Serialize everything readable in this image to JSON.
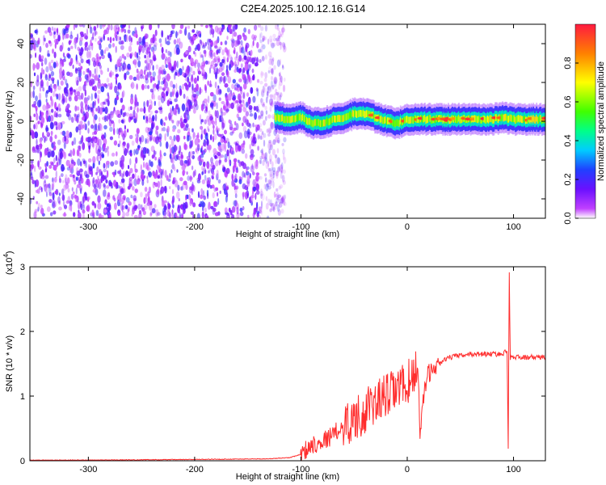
{
  "title": "C2E4.2025.100.12.16.G14",
  "chart_data": [
    {
      "type": "heatmap",
      "xlabel": "Height of straight line (km)",
      "ylabel": "Frequency (Hz)",
      "xlim": [
        -355,
        130
      ],
      "ylim": [
        -50,
        50
      ],
      "x_ticks": [
        -300,
        -200,
        -100,
        0,
        100
      ],
      "y_ticks": [
        -40,
        -20,
        0,
        20,
        40
      ],
      "colorbar": {
        "label": "Normalized spectral amplitude",
        "range": [
          0,
          1
        ],
        "ticks": [
          0.0,
          0.2,
          0.4,
          0.6,
          0.8
        ]
      },
      "regions": [
        {
          "x_range": [
            -355,
            -125
          ],
          "pattern": "noise",
          "amplitude_range": [
            0.0,
            0.2
          ],
          "frequency_range": [
            -50,
            50
          ]
        },
        {
          "x_range": [
            -125,
            130
          ],
          "pattern": "signal_band",
          "center_frequency": 0,
          "band_halfwidth": 6
        }
      ],
      "ridge": {
        "x": [
          -125,
          -110,
          -100,
          -90,
          -80,
          -70,
          -60,
          -50,
          -40,
          -30,
          -20,
          -10,
          0,
          10,
          20,
          40,
          60,
          80,
          90,
          100,
          130
        ],
        "frequency": [
          2,
          1,
          2,
          -1,
          -1,
          1,
          2,
          4,
          4,
          2,
          0,
          -1,
          1,
          1,
          1,
          1,
          1,
          1,
          2,
          1,
          1
        ]
      }
    },
    {
      "type": "line",
      "xlabel": "Height of straight line (km)",
      "ylabel": "SNR (10 * v/v)",
      "y_multiplier": "(x10",
      "y_multiplier_exponent": "4",
      "y_multiplier_close": ")",
      "xlim": [
        -355,
        130
      ],
      "ylim": [
        0,
        3
      ],
      "x_ticks": [
        -300,
        -200,
        -100,
        0,
        100
      ],
      "y_ticks": [
        0,
        1,
        2,
        3
      ],
      "series": [
        {
          "color": "#ff2d2d",
          "x": [
            -355,
            -300,
            -200,
            -130,
            -110,
            -100,
            -90,
            -80,
            -70,
            -60,
            -50,
            -40,
            -30,
            -20,
            -10,
            -5,
            0,
            5,
            10,
            12,
            15,
            20,
            30,
            40,
            60,
            80,
            90,
            94,
            95,
            96,
            97,
            100,
            110,
            130
          ],
          "y": [
            0.01,
            0.01,
            0.02,
            0.03,
            0.05,
            0.1,
            0.25,
            0.3,
            0.4,
            0.55,
            0.65,
            0.75,
            0.9,
            1.0,
            1.1,
            1.15,
            1.2,
            1.3,
            1.5,
            0.4,
            1.0,
            1.35,
            1.5,
            1.6,
            1.65,
            1.65,
            1.65,
            1.7,
            0.2,
            2.9,
            1.6,
            1.6,
            1.6,
            1.6
          ]
        }
      ],
      "noise_amplitude": [
        {
          "x_range": [
            -100,
            -60
          ],
          "amplitude": 0.15
        },
        {
          "x_range": [
            -60,
            -20
          ],
          "amplitude": 0.35
        },
        {
          "x_range": [
            -20,
            10
          ],
          "amplitude": 0.35
        },
        {
          "x_range": [
            10,
            30
          ],
          "amplitude": 0.15
        },
        {
          "x_range": [
            30,
            130
          ],
          "amplitude": 0.04
        }
      ]
    }
  ]
}
